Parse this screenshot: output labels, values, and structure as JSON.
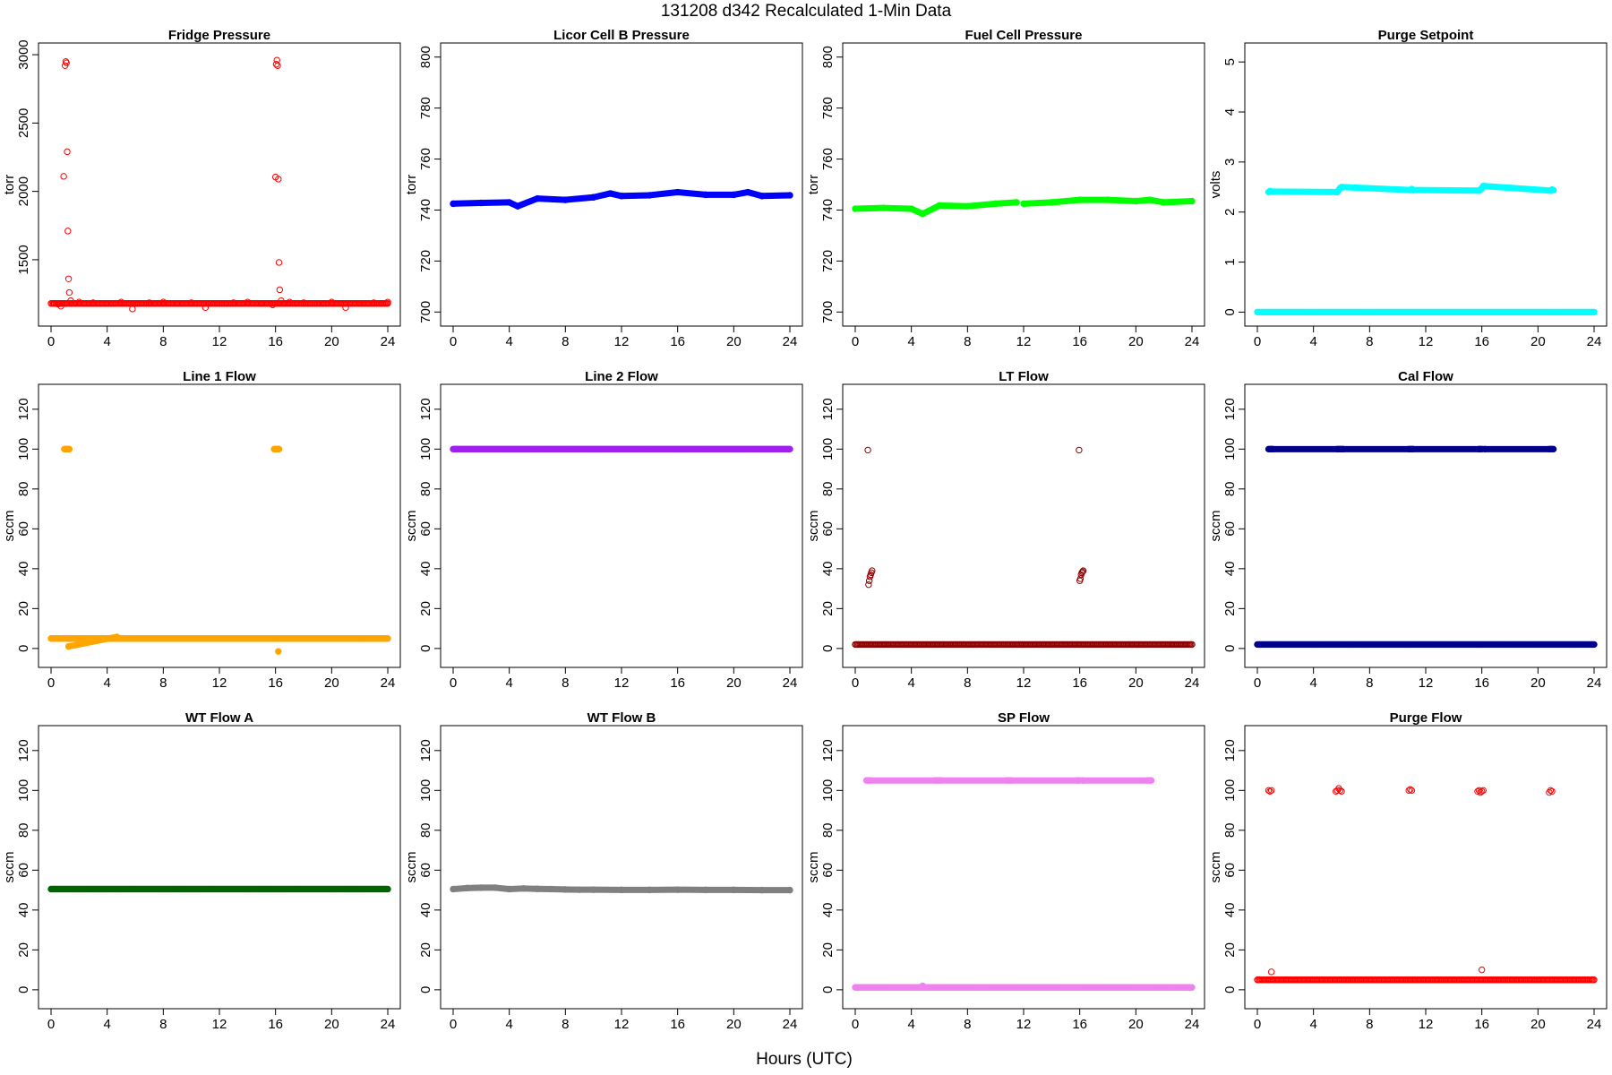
{
  "page": {
    "title": "131208   d342   Recalculated 1-Min Data",
    "xlabel": "Hours (UTC)"
  },
  "chart_data": [
    {
      "type": "scatter",
      "title": "Fridge Pressure",
      "ylabel": "torr",
      "color": "#ff0000",
      "marker": "open-circle",
      "xlim": [
        0,
        24
      ],
      "ylim": [
        1080,
        3020
      ],
      "xticks": [
        0,
        4,
        8,
        12,
        16,
        20,
        24
      ],
      "yticks": [
        1500,
        2000,
        2500,
        3000
      ],
      "baseline": 1180,
      "series": [
        {
          "x": [
            0.2,
            0.5,
            0.7,
            0.9,
            1.0,
            1.05,
            1.1,
            1.15,
            1.2,
            1.25,
            1.3,
            1.4,
            2,
            3,
            4,
            5,
            5.8,
            6,
            7,
            8,
            9,
            10,
            11,
            12,
            13,
            14,
            15,
            15.8,
            16,
            16.05,
            16.1,
            16.15,
            16.2,
            16.25,
            16.3,
            16.4,
            17,
            18,
            19,
            20,
            21,
            22,
            23,
            24
          ],
          "y": [
            1180,
            1175,
            1160,
            2110,
            2920,
            2950,
            2940,
            2290,
            1710,
            1360,
            1260,
            1200,
            1190,
            1185,
            1180,
            1190,
            1140,
            1180,
            1185,
            1190,
            1180,
            1185,
            1150,
            1180,
            1185,
            1190,
            1180,
            1170,
            2105,
            2930,
            2960,
            2920,
            2090,
            1480,
            1280,
            1200,
            1190,
            1185,
            1180,
            1190,
            1150,
            1180,
            1185,
            1190
          ]
        }
      ]
    },
    {
      "type": "scatter",
      "title": "Licor Cell B Pressure",
      "ylabel": "torr",
      "color": "#0000ff",
      "marker": "filled-circle",
      "xlim": [
        0,
        24
      ],
      "ylim": [
        698,
        802
      ],
      "xticks": [
        0,
        4,
        8,
        12,
        16,
        20,
        24
      ],
      "yticks": [
        700,
        720,
        740,
        760,
        780,
        800
      ],
      "series": [
        {
          "x": [
            0,
            2,
            4,
            4.6,
            6,
            8,
            10,
            11.2,
            12,
            14,
            16,
            18,
            20,
            21,
            22,
            24
          ],
          "y": [
            742.5,
            742.8,
            743,
            741.5,
            744.5,
            744,
            745,
            746.5,
            745.5,
            745.8,
            747,
            746,
            746,
            747,
            745.5,
            745.8
          ]
        }
      ]
    },
    {
      "type": "scatter",
      "title": "Fuel Cell Pressure",
      "ylabel": "torr",
      "color": "#00ff00",
      "marker": "filled-circle",
      "xlim": [
        0,
        24
      ],
      "ylim": [
        698,
        802
      ],
      "xticks": [
        0,
        4,
        8,
        12,
        16,
        20,
        24
      ],
      "yticks": [
        700,
        720,
        740,
        760,
        780,
        800
      ],
      "series": [
        {
          "x": [
            0,
            2,
            4,
            4.8,
            6,
            8,
            10,
            11.5,
            12,
            14,
            16,
            18,
            20,
            21,
            22,
            24
          ],
          "y": [
            740.5,
            740.8,
            740.5,
            738.5,
            741.8,
            741.5,
            742.5,
            743,
            742.5,
            743,
            744,
            744,
            743.5,
            744,
            743,
            743.5
          ]
        }
      ]
    },
    {
      "type": "scatter",
      "title": "Purge Setpoint",
      "ylabel": "volts",
      "color": "#00ffff",
      "marker": "filled-circle",
      "xlim": [
        0,
        24
      ],
      "ylim": [
        -0.1,
        5.2
      ],
      "xticks": [
        0,
        4,
        8,
        12,
        16,
        20,
        24
      ],
      "yticks": [
        0,
        1,
        2,
        3,
        4,
        5
      ],
      "baseline": 0,
      "series": [
        {
          "x": [
            0.8,
            0.9,
            1.0,
            5.7,
            5.8,
            5.9,
            6.0,
            10.9,
            11.0,
            11.1,
            15.8,
            15.9,
            16.0,
            16.1,
            20.9,
            21.0,
            21.1
          ],
          "y": [
            2.4,
            2.42,
            2.41,
            2.4,
            2.44,
            2.48,
            2.5,
            2.44,
            2.46,
            2.44,
            2.43,
            2.45,
            2.48,
            2.52,
            2.43,
            2.45,
            2.44
          ]
        }
      ]
    },
    {
      "type": "scatter",
      "title": "Line 1 Flow",
      "ylabel": "sccm",
      "color": "#ffa500",
      "marker": "filled-circle",
      "xlim": [
        0,
        24
      ],
      "ylim": [
        -5,
        128
      ],
      "xticks": [
        0,
        4,
        8,
        12,
        16,
        20,
        24
      ],
      "yticks": [
        0,
        20,
        40,
        60,
        80,
        100,
        120
      ],
      "baseline": 5,
      "series": [
        {
          "x": [
            0.95,
            1.0,
            1.05,
            1.1,
            1.15,
            1.2,
            1.25,
            1.3,
            1.25,
            4.7,
            15.9,
            15.95,
            16.0,
            16.05,
            16.1,
            16.15,
            16.2,
            16.25,
            16.2
          ],
          "y": [
            100,
            100,
            100,
            100,
            100,
            100,
            100,
            100,
            1,
            5.8,
            100,
            100,
            100,
            100,
            100,
            100,
            100,
            100,
            -1.5
          ]
        }
      ]
    },
    {
      "type": "scatter",
      "title": "Line 2 Flow",
      "ylabel": "sccm",
      "color": "#a020f0",
      "marker": "filled-circle",
      "xlim": [
        0,
        24
      ],
      "ylim": [
        -5,
        128
      ],
      "xticks": [
        0,
        4,
        8,
        12,
        16,
        20,
        24
      ],
      "yticks": [
        0,
        20,
        40,
        60,
        80,
        100,
        120
      ],
      "baseline": 100,
      "series": []
    },
    {
      "type": "scatter",
      "title": "LT Flow",
      "ylabel": "sccm",
      "color": "#8b0000",
      "marker": "open-circle",
      "xlim": [
        0,
        24
      ],
      "ylim": [
        -5,
        128
      ],
      "xticks": [
        0,
        4,
        8,
        12,
        16,
        20,
        24
      ],
      "yticks": [
        0,
        20,
        40,
        60,
        80,
        100,
        120
      ],
      "baseline": 2,
      "series": [
        {
          "x": [
            0.9,
            0.95,
            1.0,
            1.05,
            1.1,
            1.15,
            1.2,
            15.95,
            16.0,
            16.05,
            16.1,
            16.15,
            16.2,
            16.25
          ],
          "y": [
            99.5,
            32,
            34,
            36,
            37,
            38,
            39,
            99.5,
            34,
            35,
            37,
            38,
            38.5,
            39
          ]
        }
      ]
    },
    {
      "type": "scatter",
      "title": "Cal Flow",
      "ylabel": "sccm",
      "color": "#00008b",
      "marker": "filled-circle",
      "xlim": [
        0,
        24
      ],
      "ylim": [
        -5,
        128
      ],
      "xticks": [
        0,
        4,
        8,
        12,
        16,
        20,
        24
      ],
      "yticks": [
        0,
        20,
        40,
        60,
        80,
        100,
        120
      ],
      "baseline": 2,
      "series": [
        {
          "x": [
            0.8,
            0.9,
            1.0,
            1.1,
            5.7,
            5.8,
            5.9,
            6.0,
            6.1,
            10.8,
            10.9,
            11.0,
            11.1,
            15.8,
            15.9,
            16.0,
            16.2,
            20.8,
            20.9,
            21.0,
            21.1
          ],
          "y": [
            100,
            100,
            100,
            100,
            100,
            100,
            100,
            100,
            100,
            100,
            100,
            100,
            100,
            100,
            100,
            100,
            100,
            100,
            100,
            100,
            100
          ]
        }
      ]
    },
    {
      "type": "scatter",
      "title": "WT Flow A",
      "ylabel": "sccm",
      "color": "#006400",
      "marker": "filled-circle",
      "xlim": [
        0,
        24
      ],
      "ylim": [
        -5,
        128
      ],
      "xticks": [
        0,
        4,
        8,
        12,
        16,
        20,
        24
      ],
      "yticks": [
        0,
        20,
        40,
        60,
        80,
        100,
        120
      ],
      "baseline": 50.5,
      "series": []
    },
    {
      "type": "scatter",
      "title": "WT Flow B",
      "ylabel": "sccm",
      "color": "#808080",
      "marker": "filled-circle",
      "xlim": [
        0,
        24
      ],
      "ylim": [
        -5,
        128
      ],
      "xticks": [
        0,
        4,
        8,
        12,
        16,
        20,
        24
      ],
      "yticks": [
        0,
        20,
        40,
        60,
        80,
        100,
        120
      ],
      "series": [
        {
          "x": [
            0,
            1,
            2,
            3,
            4,
            5,
            6,
            7,
            8,
            9,
            10,
            12,
            14,
            16,
            18,
            20,
            22,
            24
          ],
          "y": [
            50.5,
            51,
            51.2,
            51.2,
            50.5,
            50.8,
            50.6,
            50.5,
            50.3,
            50.2,
            50.2,
            50.1,
            50.1,
            50.2,
            50.1,
            50.1,
            50.0,
            50.0
          ]
        }
      ]
    },
    {
      "type": "scatter",
      "title": "SP Flow",
      "ylabel": "sccm",
      "color": "#ee82ee",
      "marker": "filled-circle",
      "xlim": [
        0,
        24
      ],
      "ylim": [
        -5,
        128
      ],
      "xticks": [
        0,
        4,
        8,
        12,
        16,
        20,
        24
      ],
      "yticks": [
        0,
        20,
        40,
        60,
        80,
        100,
        120
      ],
      "baseline": 1.2,
      "series": [
        {
          "x": [
            0.8,
            0.9,
            1.0,
            1.1,
            5.7,
            5.8,
            5.9,
            6.0,
            6.1,
            10.8,
            10.9,
            11.0,
            11.1,
            15.8,
            15.9,
            16.0,
            16.2,
            20.8,
            20.9,
            21.0,
            21.1,
            4.8
          ],
          "y": [
            105,
            105,
            105,
            105,
            105,
            105,
            105,
            105,
            105,
            105,
            105,
            105,
            105,
            105,
            105,
            105,
            105,
            105,
            105,
            105,
            105,
            2
          ]
        }
      ]
    },
    {
      "type": "scatter",
      "title": "Purge Flow",
      "ylabel": "sccm",
      "color": "#ff0000",
      "marker": "open-circle",
      "xlim": [
        0,
        24
      ],
      "ylim": [
        -5,
        128
      ],
      "xticks": [
        0,
        4,
        8,
        12,
        16,
        20,
        24
      ],
      "yticks": [
        0,
        20,
        40,
        60,
        80,
        100,
        120
      ],
      "baseline": 5,
      "series": [
        {
          "x": [
            0.8,
            0.9,
            1.0,
            5.6,
            5.7,
            5.8,
            5.9,
            6.0,
            10.8,
            10.9,
            11.0,
            15.7,
            15.8,
            15.9,
            16.0,
            16.1,
            20.8,
            20.9,
            21.0,
            1.0,
            16.0
          ],
          "y": [
            100,
            99.5,
            100,
            99.5,
            100,
            101,
            100,
            99.5,
            100,
            100.5,
            100,
            99.5,
            100,
            99,
            99.5,
            100,
            99,
            100,
            99.5,
            9,
            10
          ]
        }
      ]
    }
  ]
}
